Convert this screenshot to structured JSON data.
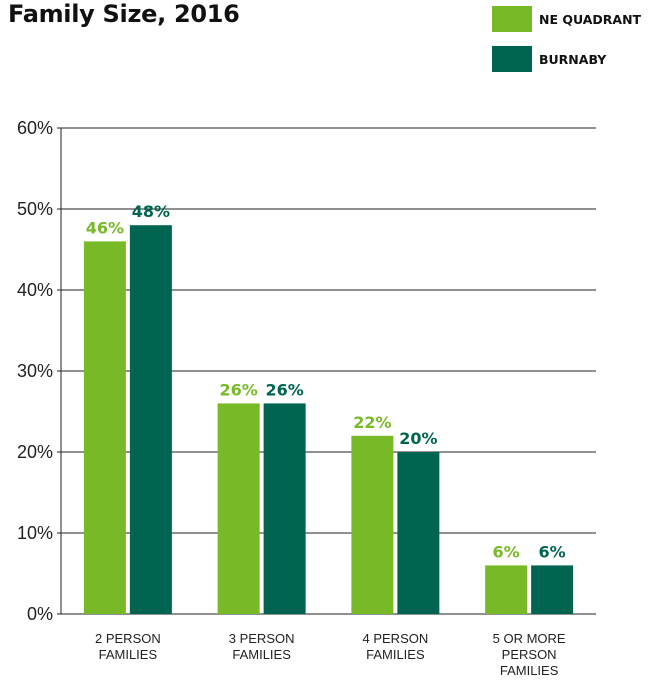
{
  "chart_data": {
    "type": "bar",
    "title": "Family Size, 2016",
    "categories": [
      [
        "2 PERSON",
        "FAMILIES"
      ],
      [
        "3 PERSON",
        "FAMILIES"
      ],
      [
        "4 PERSON",
        "FAMILIES"
      ],
      [
        "5 OR MORE",
        "PERSON",
        "FAMILIES"
      ]
    ],
    "series": [
      {
        "name": "NE QUADRANT",
        "color": "#78b928",
        "values": [
          46,
          26,
          22,
          6
        ],
        "labels": [
          "46%",
          "26%",
          "22%",
          "6%"
        ]
      },
      {
        "name": "BURNABY",
        "color": "#006550",
        "values": [
          48,
          26,
          20,
          6
        ],
        "labels": [
          "48%",
          "26%",
          "20%",
          "6%"
        ]
      }
    ],
    "ylim": [
      0,
      60
    ],
    "yticks": [
      0,
      10,
      20,
      30,
      40,
      50,
      60
    ],
    "ytick_labels": [
      "0%",
      "10%",
      "20%",
      "30%",
      "40%",
      "50%",
      "60%"
    ],
    "grid": true,
    "legend": "top-right"
  }
}
